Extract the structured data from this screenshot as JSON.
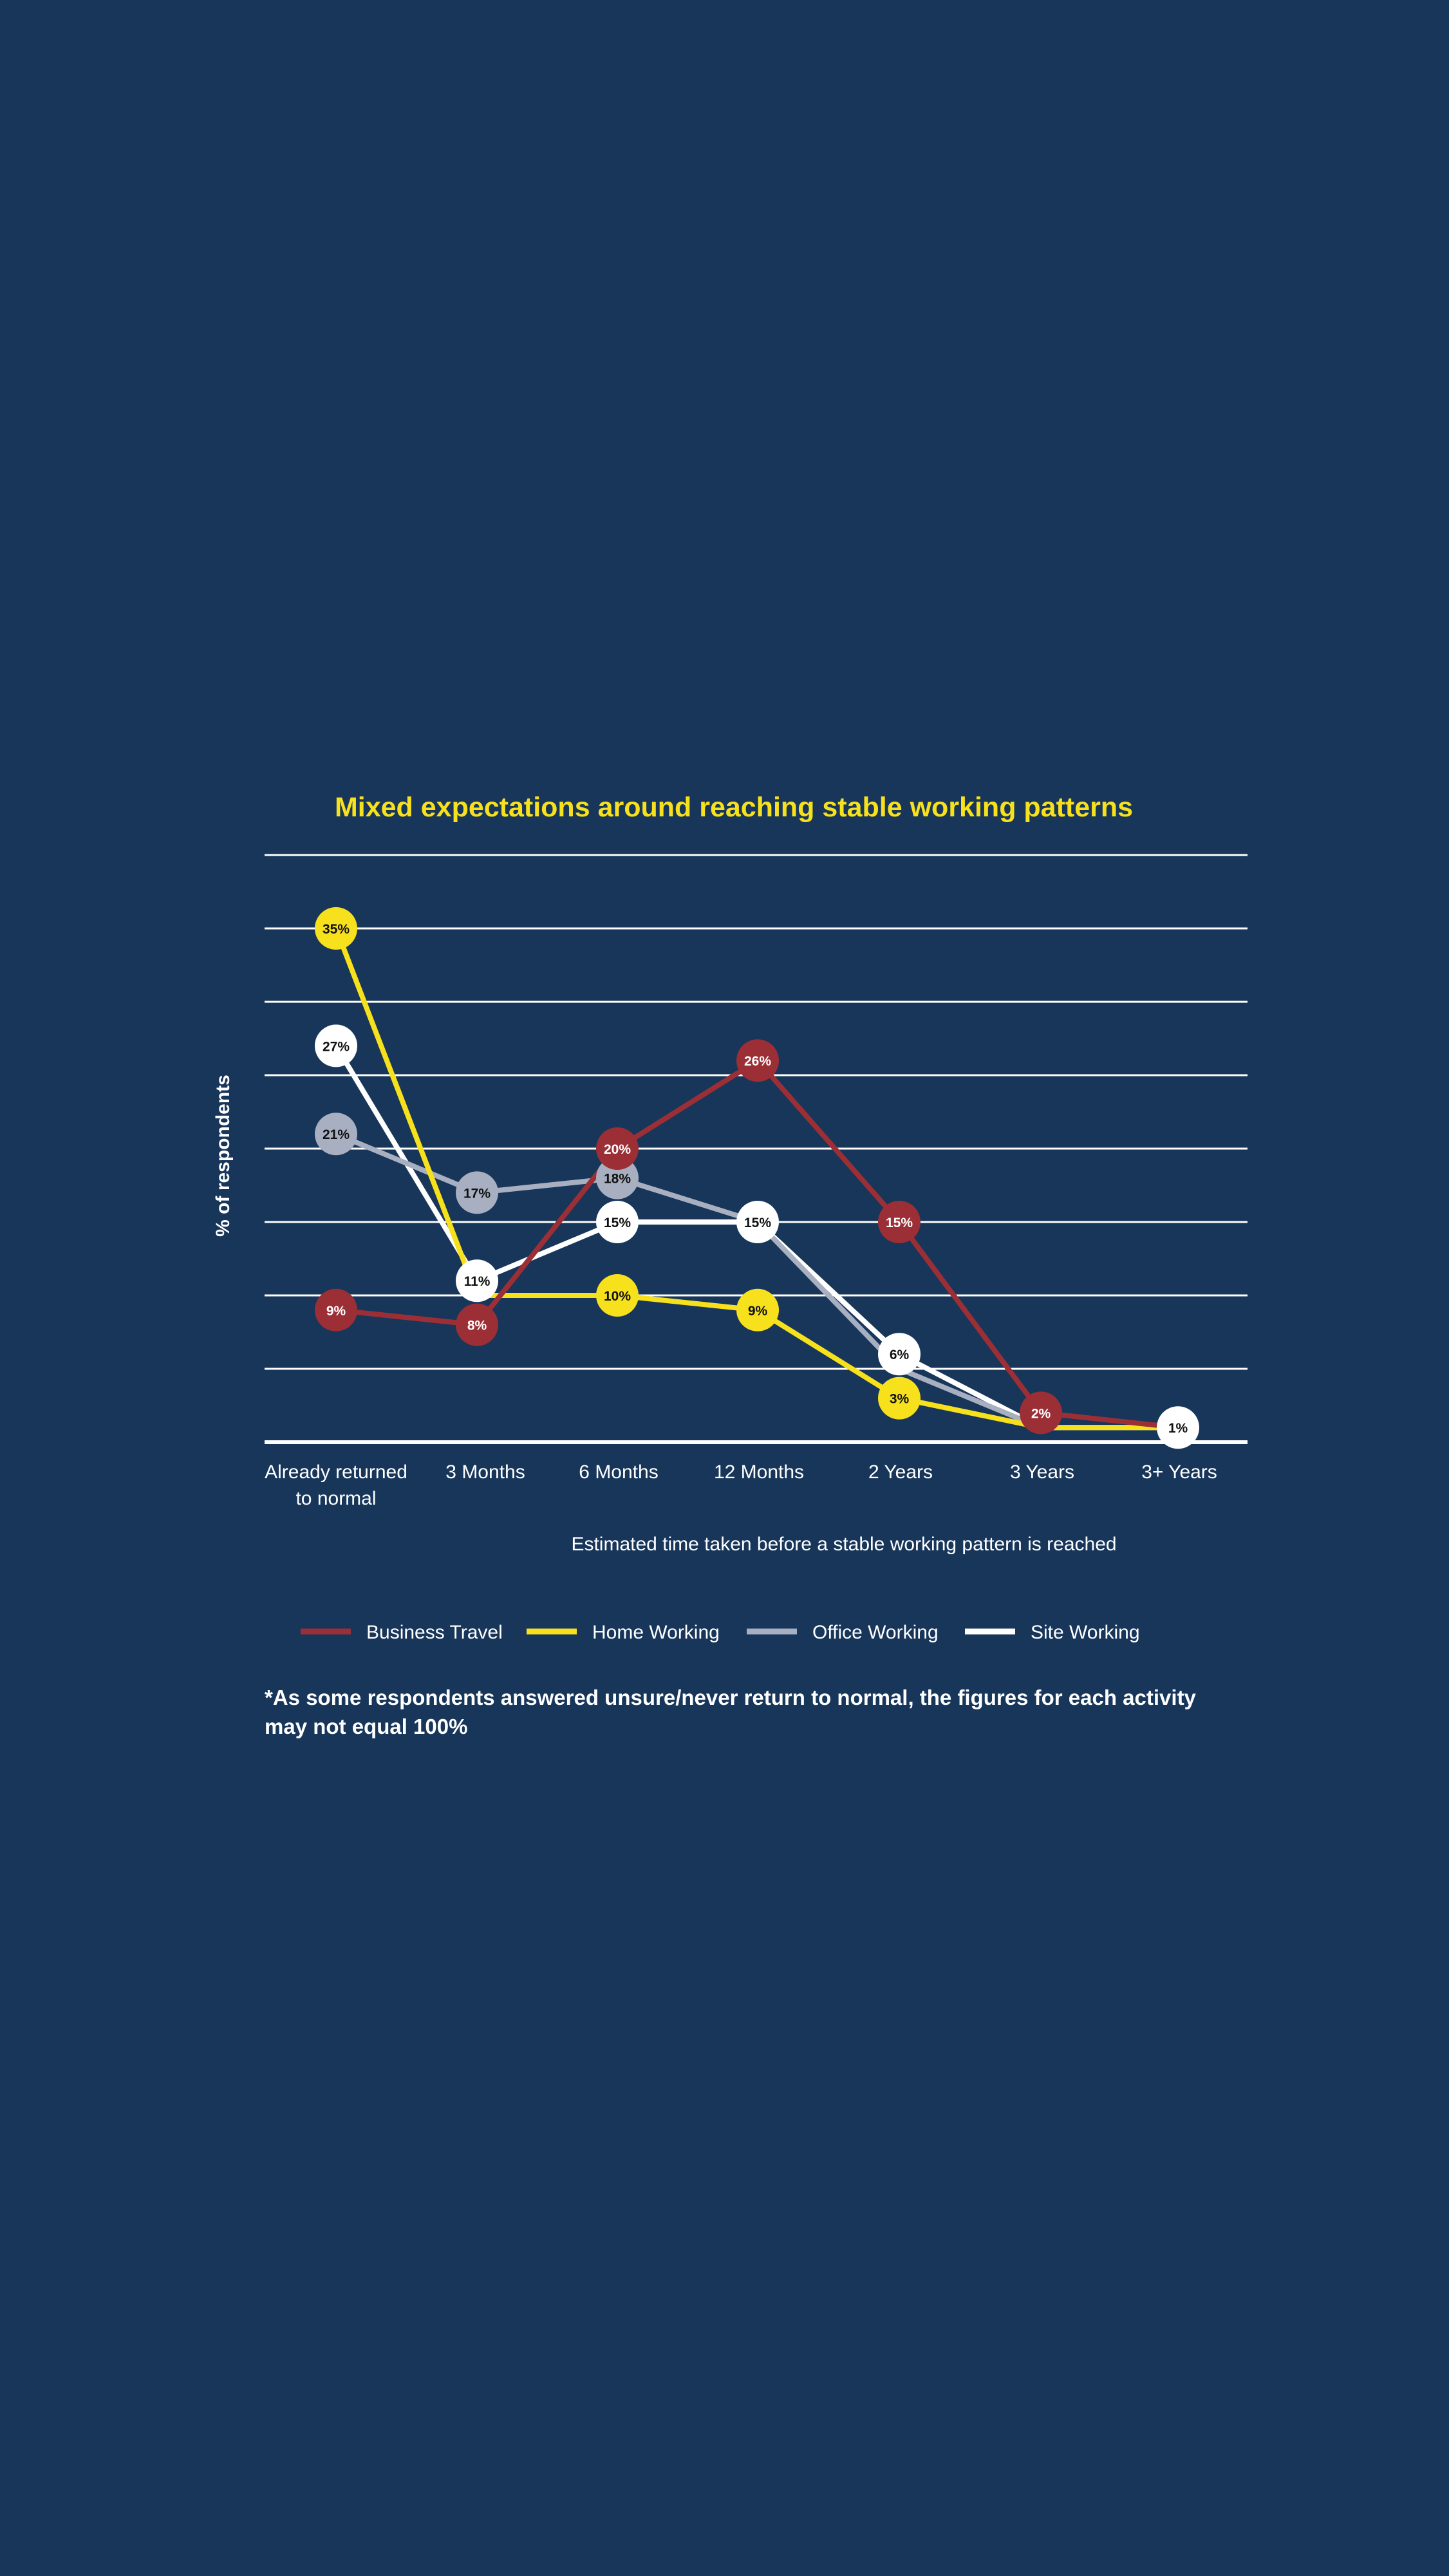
{
  "chart_data": {
    "type": "line",
    "title": "Mixed expectations around reaching stable working patterns",
    "ylabel": "% of respondents",
    "xlabel": "Estimated time taken before a stable working pattern is reached",
    "categories": [
      "Already returned to normal",
      "3 Months",
      "6 Months",
      "12 Months",
      "2 Years",
      "3 Years",
      "3+ Years"
    ],
    "ylim": [
      0,
      40
    ],
    "grid": true,
    "series": [
      {
        "name": "Business Travel",
        "color": "#9b2f35",
        "values": [
          9,
          8,
          20,
          26,
          15,
          2,
          1
        ],
        "labels": [
          "9%",
          "8%",
          "20%",
          "26%",
          "15%",
          "2%",
          null
        ]
      },
      {
        "name": "Home Working",
        "color": "#f7e01c",
        "values": [
          35,
          10,
          10,
          9,
          3,
          1,
          1
        ],
        "labels": [
          "35%",
          null,
          "10%",
          "9%",
          "3%",
          null,
          null
        ]
      },
      {
        "name": "Office Working",
        "color": "#a7afc0",
        "values": [
          21,
          17,
          18,
          15,
          5,
          1,
          1
        ],
        "labels": [
          "21%",
          "17%",
          "18%",
          null,
          null,
          null,
          null
        ]
      },
      {
        "name": "Site Working",
        "color": "#ffffff",
        "values": [
          27,
          11,
          15,
          15,
          6,
          1,
          1
        ],
        "labels": [
          "27%",
          "11%",
          "15%",
          "15%",
          "6%",
          null,
          "1%"
        ]
      }
    ],
    "footnote": "*As some respondents answered unsure/never return to normal, the figures for each activity may not equal 100%"
  }
}
